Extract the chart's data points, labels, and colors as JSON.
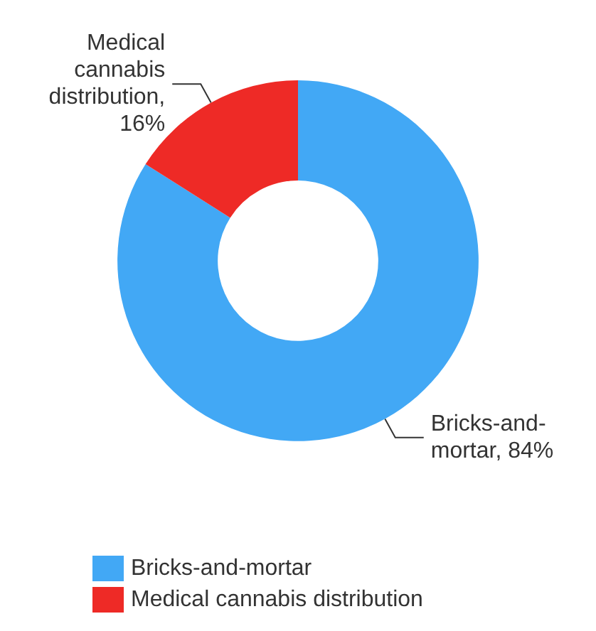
{
  "chart_data": {
    "type": "donut",
    "categories": [
      "Bricks-and-mortar",
      "Medical cannabis distribution"
    ],
    "values": [
      84,
      16
    ],
    "colors": [
      "#42a8f5",
      "#ee2a26"
    ],
    "value_labels": [
      "Bricks-and-\nmortar, 84%",
      "Medical\ncannabis\ndistribution,\n16%"
    ],
    "data_labels": true,
    "legend": "bottom"
  }
}
